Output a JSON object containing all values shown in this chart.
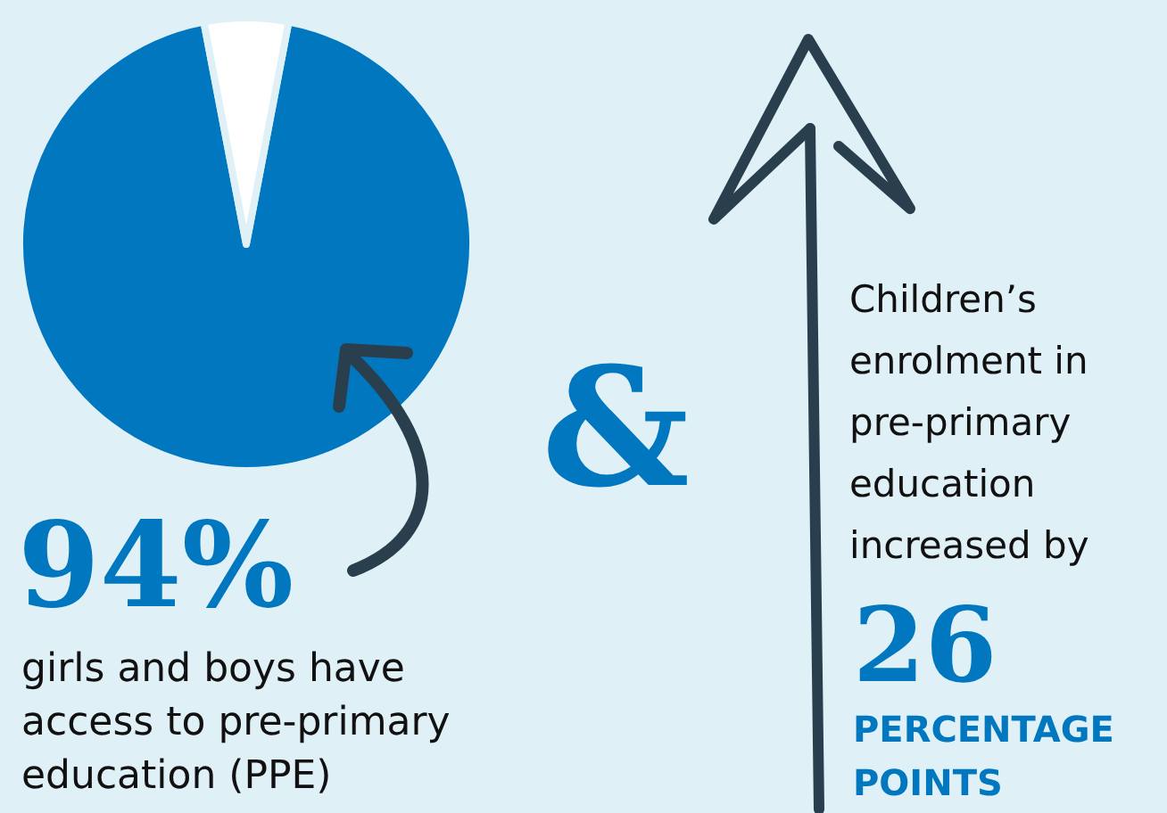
{
  "chart_data": {
    "type": "pie",
    "categories": [
      null,
      null
    ],
    "values": [
      94,
      6
    ],
    "colors": [
      "#0077be",
      "#ffffff"
    ],
    "annotations": [
      "94%",
      "girls and boys have access to pre-primary education (PPE)",
      "&",
      "Children’s enrolment in pre-primary education increased by",
      "26",
      "PERCENTAGE POINTS"
    ]
  }
}
